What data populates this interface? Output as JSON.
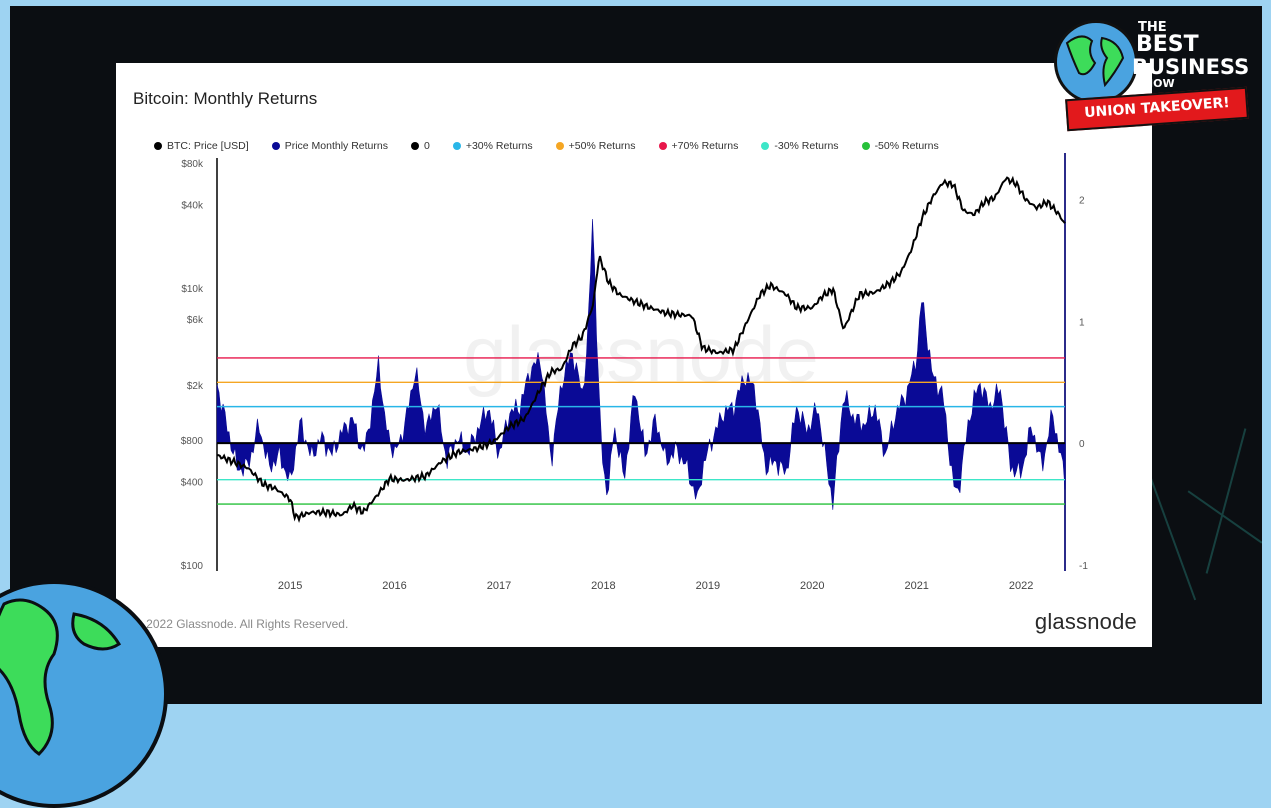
{
  "overlay": {
    "logo": {
      "line1": "THE",
      "line2": "BEST",
      "line3": "BUSINESS",
      "line4": "SHOW",
      "ribbon": "UNION TAKEOVER!"
    }
  },
  "colors": {
    "background": "#9ed3f2",
    "frame": "#0b0e12",
    "price": "#000000",
    "returns": "#0a0a96",
    "zero": "#000000",
    "plus30": "#29b6e8",
    "plus50": "#f5a623",
    "plus70": "#e8174b",
    "minus30": "#3de6c8",
    "minus50": "#27c13a"
  },
  "footer": {
    "copyright": "© 2022 Glassnode. All Rights Reserved.",
    "brand": "glassnode"
  },
  "chart_data": {
    "type": "line",
    "title": "Bitcoin: Monthly Returns",
    "watermark": "glassnode",
    "legend": [
      {
        "label": "BTC: Price [USD]",
        "color": "#000000"
      },
      {
        "label": "Price Monthly Returns",
        "color": "#0a0a96"
      },
      {
        "label": "0",
        "color": "#000000"
      },
      {
        "label": "+30% Returns",
        "color": "#29b6e8"
      },
      {
        "label": "+50% Returns",
        "color": "#f5a623"
      },
      {
        "label": "+70% Returns",
        "color": "#e8174b"
      },
      {
        "label": "-30% Returns",
        "color": "#3de6c8"
      },
      {
        "label": "-50% Returns",
        "color": "#27c13a"
      }
    ],
    "x_ticks": [
      "2015",
      "2016",
      "2017",
      "2018",
      "2019",
      "2020",
      "2021",
      "2022"
    ],
    "x_range": [
      2014.3,
      2022.42
    ],
    "y_left": {
      "scale": "log",
      "range": [
        100,
        80000
      ],
      "tick_values": [
        100,
        400,
        800,
        2000,
        6000,
        10000,
        40000,
        80000
      ],
      "tick_labels": [
        "$100",
        "$400",
        "$800",
        "$2k",
        "$6k",
        "$10k",
        "$40k",
        "$80k"
      ]
    },
    "y_right": {
      "scale": "linear",
      "range": [
        -1,
        2.3
      ],
      "tick_values": [
        -1,
        0,
        1,
        2
      ],
      "tick_labels": [
        "-1",
        "0",
        "1",
        "2"
      ]
    },
    "thresholds": [
      {
        "name": "+70% Returns",
        "value": 0.7
      },
      {
        "name": "+50% Returns",
        "value": 0.5
      },
      {
        "name": "+30% Returns",
        "value": 0.3
      },
      {
        "name": "0",
        "value": 0
      },
      {
        "name": "-30% Returns",
        "value": -0.3
      },
      {
        "name": "-50% Returns",
        "value": -0.5
      }
    ],
    "series": [
      {
        "name": "BTC: Price [USD]",
        "axis": "left",
        "x": [
          2014.3,
          2014.45,
          2014.6,
          2014.75,
          2014.85,
          2015.0,
          2015.05,
          2015.2,
          2015.35,
          2015.5,
          2015.6,
          2015.7,
          2015.85,
          2015.95,
          2016.1,
          2016.3,
          2016.45,
          2016.6,
          2016.8,
          2016.95,
          2017.1,
          2017.25,
          2017.4,
          2017.5,
          2017.6,
          2017.7,
          2017.8,
          2017.9,
          2017.96,
          2018.05,
          2018.15,
          2018.3,
          2018.45,
          2018.6,
          2018.75,
          2018.85,
          2018.95,
          2019.1,
          2019.25,
          2019.35,
          2019.5,
          2019.6,
          2019.75,
          2019.85,
          2020.0,
          2020.1,
          2020.2,
          2020.3,
          2020.45,
          2020.6,
          2020.75,
          2020.85,
          2020.95,
          2021.05,
          2021.15,
          2021.25,
          2021.35,
          2021.45,
          2021.55,
          2021.65,
          2021.75,
          2021.85,
          2021.95,
          2022.05,
          2022.15,
          2022.25,
          2022.35,
          2022.42
        ],
        "values": [
          620,
          560,
          500,
          380,
          360,
          300,
          220,
          240,
          240,
          230,
          270,
          240,
          330,
          420,
          410,
          440,
          560,
          650,
          700,
          780,
          1000,
          1150,
          1900,
          2500,
          2600,
          3800,
          4500,
          7500,
          17000,
          11000,
          9000,
          8000,
          7200,
          6600,
          6400,
          6300,
          3700,
          3400,
          3600,
          5200,
          9000,
          10500,
          9000,
          7200,
          7200,
          8800,
          9800,
          5000,
          9000,
          9300,
          11000,
          13000,
          19000,
          32000,
          45000,
          58000,
          56000,
          36000,
          34000,
          42000,
          45000,
          62000,
          57000,
          43000,
          38000,
          42000,
          35000,
          29000
        ]
      },
      {
        "name": "Price Monthly Returns",
        "axis": "right",
        "x": [
          2014.3,
          2014.4,
          2014.5,
          2014.6,
          2014.7,
          2014.8,
          2014.9,
          2015.0,
          2015.1,
          2015.2,
          2015.3,
          2015.4,
          2015.5,
          2015.6,
          2015.7,
          2015.8,
          2015.85,
          2015.9,
          2016.0,
          2016.1,
          2016.2,
          2016.3,
          2016.4,
          2016.5,
          2016.6,
          2016.7,
          2016.8,
          2016.9,
          2017.0,
          2017.1,
          2017.2,
          2017.3,
          2017.4,
          2017.5,
          2017.6,
          2017.7,
          2017.8,
          2017.85,
          2017.9,
          2017.95,
          2018.0,
          2018.05,
          2018.1,
          2018.2,
          2018.3,
          2018.4,
          2018.5,
          2018.6,
          2018.7,
          2018.8,
          2018.9,
          2018.95,
          2019.05,
          2019.15,
          2019.25,
          2019.35,
          2019.45,
          2019.55,
          2019.65,
          2019.75,
          2019.85,
          2019.95,
          2020.05,
          2020.15,
          2020.2,
          2020.3,
          2020.4,
          2020.5,
          2020.6,
          2020.7,
          2020.8,
          2020.9,
          2021.0,
          2021.05,
          2021.15,
          2021.25,
          2021.35,
          2021.4,
          2021.5,
          2021.6,
          2021.7,
          2021.8,
          2021.9,
          2022.0,
          2022.1,
          2022.2,
          2022.3,
          2022.42
        ],
        "values": [
          0.48,
          0.12,
          -0.22,
          -0.18,
          0.15,
          -0.2,
          -0.1,
          -0.33,
          0.18,
          -0.12,
          0.05,
          -0.1,
          0.1,
          0.2,
          -0.1,
          0.35,
          0.7,
          0.2,
          -0.1,
          0.15,
          0.6,
          0.1,
          0.35,
          -0.15,
          0.05,
          -0.08,
          0.12,
          0.3,
          -0.1,
          0.25,
          0.3,
          0.6,
          0.7,
          -0.15,
          0.5,
          0.75,
          0.4,
          0.85,
          1.9,
          0.5,
          -0.25,
          -0.4,
          0.15,
          -0.3,
          0.45,
          -0.1,
          0.2,
          -0.15,
          -0.05,
          -0.2,
          -0.48,
          -0.2,
          0.05,
          0.25,
          0.3,
          0.55,
          0.45,
          -0.2,
          -0.15,
          -0.25,
          0.3,
          0.1,
          0.3,
          -0.25,
          -0.5,
          0.4,
          0.2,
          0.15,
          0.3,
          -0.1,
          0.25,
          0.4,
          0.7,
          1.2,
          0.55,
          0.4,
          -0.35,
          -0.4,
          0.2,
          0.5,
          0.3,
          0.45,
          -0.2,
          -0.25,
          0.15,
          -0.2,
          0.25,
          -0.3
        ]
      }
    ]
  }
}
